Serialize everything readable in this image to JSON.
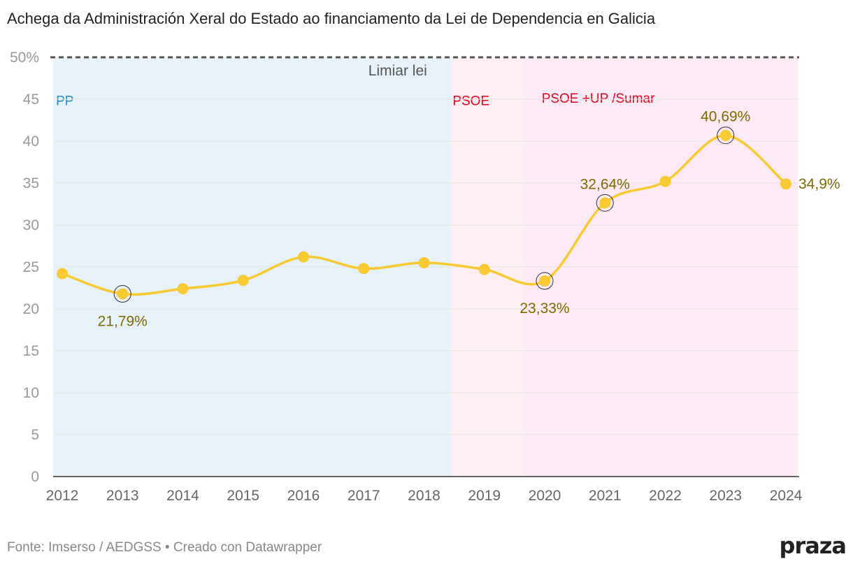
{
  "header": {
    "title": "Achega da Administración Xeral do Estado ao financiamento da Lei de Dependencia en Galicia"
  },
  "footer": {
    "source": "Fonte: Imserso / AEDGSS • Creado con Datawrapper",
    "logo": "praza"
  },
  "colors": {
    "line": "#f9c932",
    "annotation": "#7d6a00",
    "band_pp": "#e6f1f8",
    "band_psoe": "#fdeef1",
    "band_coalition": "#fdeaf4",
    "label_pp": "#2b8cbe",
    "label_psoe": "#e8001c",
    "reference_line": "#555555",
    "grid": "#e5e5e5"
  },
  "chart_data": {
    "type": "line",
    "title": "Achega da Administración Xeral do Estado ao financiamento da Lei de Dependencia en Galicia",
    "xlabel": "",
    "ylabel": "",
    "x": [
      "2012",
      "2013",
      "2014",
      "2015",
      "2016",
      "2017",
      "2018",
      "2019",
      "2020",
      "2021",
      "2022",
      "2023",
      "2024"
    ],
    "series": [
      {
        "values": [
          24.2,
          21.79,
          22.4,
          23.4,
          26.2,
          24.8,
          25.5,
          24.7,
          23.33,
          32.64,
          35.2,
          40.69,
          34.9
        ]
      }
    ],
    "ylim": [
      0,
      50
    ],
    "yticks": [
      "50%",
      "45",
      "40",
      "35",
      "30",
      "25",
      "20",
      "15",
      "10",
      "5",
      "0"
    ],
    "ytick_values": [
      50,
      45,
      40,
      35,
      30,
      25,
      20,
      15,
      10,
      5,
      0
    ],
    "grid": true,
    "legend": "none",
    "reference_line": {
      "value": 50,
      "label": "Limiar lei"
    },
    "bands": [
      {
        "label": "PP",
        "from": 2011.85,
        "to": 2018.45
      },
      {
        "label": "PSOE",
        "from": 2018.45,
        "to": 2019.65
      },
      {
        "label": "PSOE +UP /Sumar",
        "from": 2019.65,
        "to": 2024.2
      }
    ],
    "annotations": [
      {
        "x": "2013",
        "label": "21,79%",
        "position": "below",
        "highlight": true
      },
      {
        "x": "2020",
        "label": "23,33%",
        "position": "below",
        "highlight": true
      },
      {
        "x": "2021",
        "label": "32,64%",
        "position": "above",
        "highlight": true
      },
      {
        "x": "2023",
        "label": "40,69%",
        "position": "above",
        "highlight": true
      },
      {
        "x": "2024",
        "label": "34,9%",
        "position": "right",
        "highlight": false
      }
    ]
  }
}
